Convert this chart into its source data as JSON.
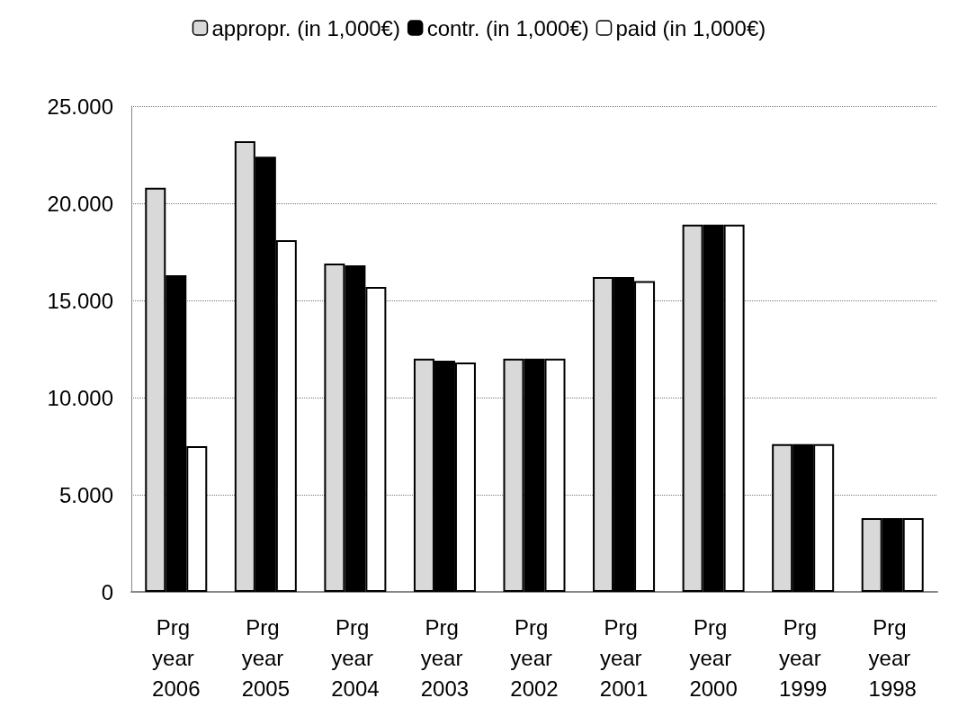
{
  "chart_data": {
    "type": "bar",
    "categories": [
      "Prg year 2006",
      "Prg year 2005",
      "Prg year 2004",
      "Prg year 2003",
      "Prg year 2002",
      "Prg year 2001",
      "Prg year 2000",
      "Prg year 1999",
      "Prg year 1998"
    ],
    "series": [
      {
        "name": "appropr. (in 1,000€)",
        "color": "#d9d9d9",
        "values": [
          20800,
          23200,
          16900,
          12000,
          12000,
          16200,
          18900,
          7600,
          3800
        ]
      },
      {
        "name": "contr. (in 1,000€)",
        "color": "#000000",
        "values": [
          16300,
          22400,
          16800,
          11900,
          12000,
          16200,
          18900,
          7600,
          3800
        ]
      },
      {
        "name": "paid (in 1,000€)",
        "color": "#ffffff",
        "values": [
          7500,
          18100,
          15700,
          11800,
          12000,
          16000,
          18900,
          7600,
          3800
        ]
      }
    ],
    "ylim": [
      0,
      25000
    ],
    "yticks": [
      {
        "value": 0,
        "label": "0"
      },
      {
        "value": 5000,
        "label": "5.000"
      },
      {
        "value": 10000,
        "label": "10.000"
      },
      {
        "value": 15000,
        "label": "15.000"
      },
      {
        "value": 20000,
        "label": "20.000"
      },
      {
        "value": 25000,
        "label": "25.000"
      }
    ],
    "grid": "y",
    "legend": "top"
  }
}
